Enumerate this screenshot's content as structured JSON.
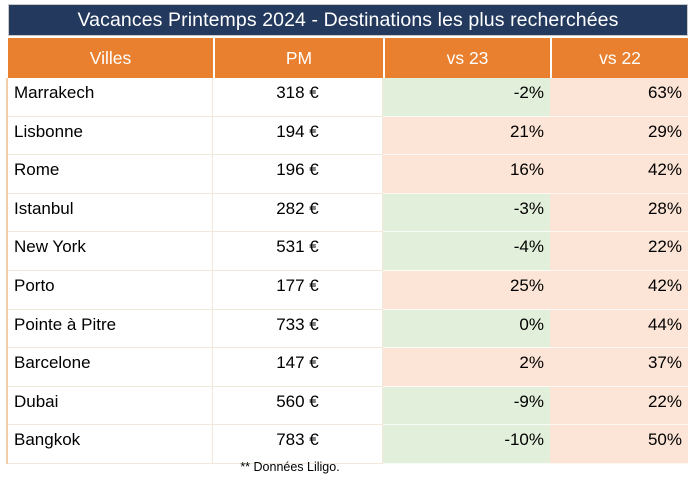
{
  "table": {
    "title": "Vacances Printemps 2024 - Destinations les plus recherchées",
    "columns": [
      "Villes",
      "PM",
      "vs 23",
      "vs 22"
    ],
    "rows": [
      {
        "city": "Marrakech",
        "pm": "318 €",
        "vs23": "-2%",
        "vs23_tone": "green",
        "vs22": "63%",
        "vs22_tone": "pink"
      },
      {
        "city": "Lisbonne",
        "pm": "194 €",
        "vs23": "21%",
        "vs23_tone": "pink",
        "vs22": "29%",
        "vs22_tone": "pink"
      },
      {
        "city": "Rome",
        "pm": "196 €",
        "vs23": "16%",
        "vs23_tone": "pink",
        "vs22": "42%",
        "vs22_tone": "pink"
      },
      {
        "city": "Istanbul",
        "pm": "282 €",
        "vs23": "-3%",
        "vs23_tone": "green",
        "vs22": "28%",
        "vs22_tone": "pink"
      },
      {
        "city": "New York",
        "pm": "531 €",
        "vs23": "-4%",
        "vs23_tone": "green",
        "vs22": "22%",
        "vs22_tone": "pink"
      },
      {
        "city": "Porto",
        "pm": "177 €",
        "vs23": "25%",
        "vs23_tone": "pink",
        "vs22": "42%",
        "vs22_tone": "pink"
      },
      {
        "city": "Pointe à Pitre",
        "pm": "733 €",
        "vs23": "0%",
        "vs23_tone": "green",
        "vs22": "44%",
        "vs22_tone": "pink"
      },
      {
        "city": "Barcelone",
        "pm": "147 €",
        "vs23": "2%",
        "vs23_tone": "pink",
        "vs22": "37%",
        "vs22_tone": "pink"
      },
      {
        "city": "Dubai",
        "pm": "560 €",
        "vs23": "-9%",
        "vs23_tone": "green",
        "vs22": "22%",
        "vs22_tone": "pink"
      },
      {
        "city": "Bangkok",
        "pm": "783 €",
        "vs23": "-10%",
        "vs23_tone": "green",
        "vs22": "50%",
        "vs22_tone": "pink"
      }
    ],
    "footnote": "** Données Liligo."
  },
  "colors": {
    "title_bg": "#24395E",
    "header_bg": "#E8802F",
    "positive_bg": "#FCE4D6",
    "negative_bg": "#E2EFDA",
    "grid_line": "#F0E9DB",
    "left_border": "#F2CFA9"
  },
  "chart_data": {
    "type": "table",
    "title": "Vacances Printemps 2024 - Destinations les plus recherchées",
    "columns": [
      "Villes",
      "PM",
      "vs 23",
      "vs 22"
    ],
    "categories": [
      "Marrakech",
      "Lisbonne",
      "Rome",
      "Istanbul",
      "New York",
      "Porto",
      "Pointe à Pitre",
      "Barcelone",
      "Dubai",
      "Bangkok"
    ],
    "series": [
      {
        "name": "PM (€)",
        "values": [
          318,
          194,
          196,
          282,
          531,
          177,
          733,
          147,
          560,
          783
        ]
      },
      {
        "name": "vs 23 (%)",
        "values": [
          -2,
          21,
          16,
          -3,
          -4,
          25,
          0,
          2,
          -9,
          -10
        ]
      },
      {
        "name": "vs 22 (%)",
        "values": [
          63,
          29,
          42,
          28,
          22,
          42,
          44,
          37,
          22,
          50
        ]
      }
    ],
    "annotations": [
      "** Données Liligo."
    ],
    "layout_hints": {
      "cell_fill_rule": "vs-23 cells green when value <= 0, light orange/pink when > 0; all vs-22 cells light orange/pink",
      "grid": "light cream gridlines, orange header band, navy title band"
    }
  }
}
